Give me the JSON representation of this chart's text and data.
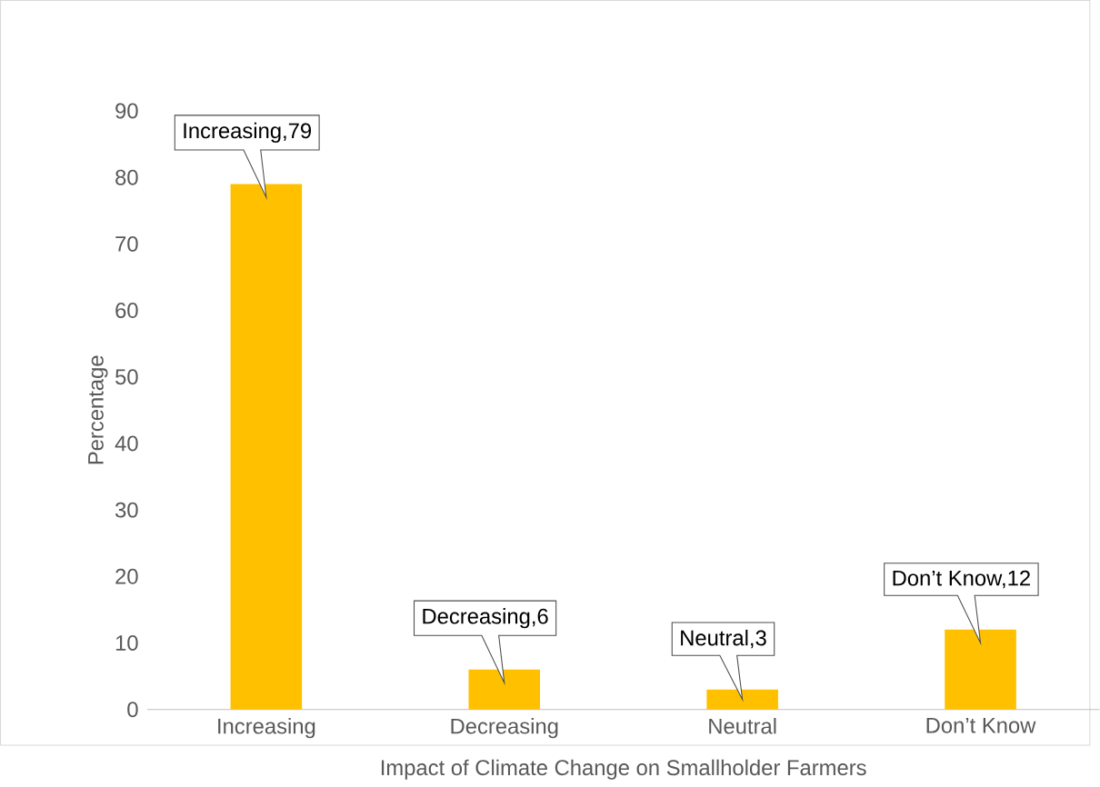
{
  "chart_data": {
    "type": "bar",
    "xlabel": "Impact of Climate Change on Smallholder Farmers",
    "ylabel": "Percentage",
    "categories": [
      "Increasing",
      "Decreasing",
      "Neutral",
      "Don’t Know"
    ],
    "values": [
      79,
      6,
      3,
      12
    ],
    "value_labels": [
      "Increasing,79",
      "Decreasing,6",
      "Neutral,3",
      "Don’t Know,12"
    ],
    "color": "#ffc000",
    "ylim": [
      0,
      90
    ],
    "yticks": [
      0,
      10,
      20,
      30,
      40,
      50,
      60,
      70,
      80,
      90
    ],
    "grid": false
  }
}
